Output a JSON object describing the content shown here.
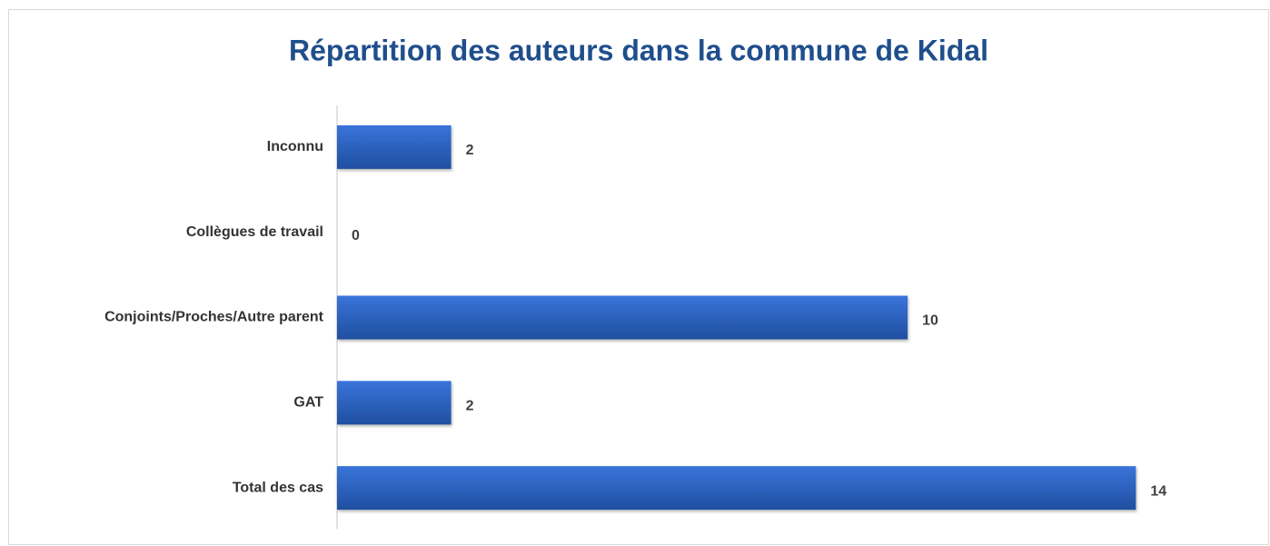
{
  "chart_data": {
    "type": "hbar",
    "title": "Répartition des auteurs dans la commune de Kidal",
    "categories": [
      "Inconnu",
      "Collègues de travail",
      "Conjoints/Proches/Autre parent",
      "GAT",
      "Total des cas"
    ],
    "values": [
      2,
      0,
      10,
      2,
      14
    ],
    "color": "#2f66c9",
    "xlim": [
      0,
      16
    ]
  }
}
